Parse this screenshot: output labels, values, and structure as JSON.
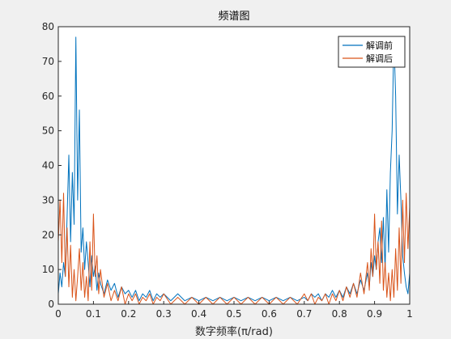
{
  "chart_data": {
    "type": "line",
    "title": "频谱图",
    "xlabel": "数字频率(π/rad)",
    "ylabel": "",
    "xlim": [
      0,
      1
    ],
    "ylim": [
      0,
      80
    ],
    "xticks": [
      "0",
      "0.1",
      "0.2",
      "0.3",
      "0.4",
      "0.5",
      "0.6",
      "0.7",
      "0.8",
      "0.9",
      "1"
    ],
    "yticks": [
      "0",
      "10",
      "20",
      "30",
      "40",
      "50",
      "60",
      "70",
      "80"
    ],
    "grid": false,
    "legend_position": "top-right",
    "series": [
      {
        "name": "解调前",
        "color": "#0072bd",
        "x": [
          0.0,
          0.005,
          0.01,
          0.015,
          0.02,
          0.025,
          0.03,
          0.035,
          0.04,
          0.045,
          0.05,
          0.055,
          0.06,
          0.065,
          0.07,
          0.075,
          0.08,
          0.085,
          0.09,
          0.095,
          0.1,
          0.105,
          0.11,
          0.115,
          0.12,
          0.13,
          0.14,
          0.15,
          0.16,
          0.17,
          0.18,
          0.19,
          0.2,
          0.21,
          0.22,
          0.23,
          0.24,
          0.25,
          0.26,
          0.27,
          0.28,
          0.29,
          0.3,
          0.32,
          0.34,
          0.36,
          0.38,
          0.4,
          0.42,
          0.44,
          0.46,
          0.48,
          0.5,
          0.52,
          0.54,
          0.56,
          0.58,
          0.6,
          0.62,
          0.64,
          0.66,
          0.68,
          0.7,
          0.71,
          0.72,
          0.73,
          0.74,
          0.75,
          0.76,
          0.77,
          0.78,
          0.79,
          0.8,
          0.81,
          0.82,
          0.83,
          0.84,
          0.85,
          0.86,
          0.87,
          0.88,
          0.885,
          0.89,
          0.895,
          0.9,
          0.905,
          0.91,
          0.915,
          0.92,
          0.925,
          0.93,
          0.935,
          0.94,
          0.945,
          0.95,
          0.955,
          0.96,
          0.965,
          0.97,
          0.975,
          0.98,
          0.985,
          0.99,
          0.995,
          1.0
        ],
        "values": [
          3,
          9,
          5,
          12,
          8,
          25,
          43,
          18,
          38,
          23,
          77,
          30,
          56,
          15,
          22,
          10,
          18,
          12,
          5,
          14,
          8,
          11,
          4,
          9,
          6,
          3,
          7,
          4,
          6,
          2,
          5,
          3,
          4,
          2,
          4,
          1,
          3,
          2,
          4,
          1,
          3,
          2,
          3,
          1,
          3,
          1,
          2,
          1,
          2,
          1,
          2,
          1,
          2,
          1,
          2,
          1,
          2,
          1,
          2,
          1,
          2,
          1,
          2,
          1,
          3,
          2,
          3,
          1,
          3,
          2,
          4,
          2,
          4,
          2,
          5,
          3,
          6,
          3,
          7,
          4,
          9,
          5,
          12,
          8,
          14,
          10,
          18,
          22,
          12,
          25,
          10,
          33,
          15,
          38,
          50,
          77,
          60,
          26,
          43,
          30,
          14,
          9,
          5,
          3,
          9
        ]
      },
      {
        "name": "解调后",
        "color": "#d95319",
        "x": [
          0.0,
          0.005,
          0.01,
          0.015,
          0.02,
          0.025,
          0.03,
          0.035,
          0.04,
          0.045,
          0.05,
          0.055,
          0.06,
          0.065,
          0.07,
          0.075,
          0.08,
          0.085,
          0.09,
          0.095,
          0.1,
          0.105,
          0.11,
          0.115,
          0.12,
          0.13,
          0.14,
          0.15,
          0.16,
          0.17,
          0.18,
          0.19,
          0.2,
          0.21,
          0.22,
          0.23,
          0.24,
          0.25,
          0.26,
          0.27,
          0.28,
          0.29,
          0.3,
          0.32,
          0.34,
          0.36,
          0.38,
          0.4,
          0.42,
          0.44,
          0.46,
          0.48,
          0.5,
          0.52,
          0.54,
          0.56,
          0.58,
          0.6,
          0.62,
          0.64,
          0.66,
          0.68,
          0.7,
          0.71,
          0.72,
          0.73,
          0.74,
          0.75,
          0.76,
          0.77,
          0.78,
          0.79,
          0.8,
          0.81,
          0.82,
          0.83,
          0.84,
          0.85,
          0.86,
          0.87,
          0.88,
          0.885,
          0.89,
          0.895,
          0.9,
          0.905,
          0.91,
          0.915,
          0.92,
          0.925,
          0.93,
          0.935,
          0.94,
          0.945,
          0.95,
          0.955,
          0.96,
          0.965,
          0.97,
          0.975,
          0.98,
          0.985,
          0.99,
          0.995,
          1.0
        ],
        "values": [
          18,
          30,
          12,
          32,
          8,
          22,
          5,
          17,
          2,
          10,
          1,
          8,
          16,
          4,
          12,
          2,
          8,
          1,
          18,
          4,
          26,
          8,
          14,
          3,
          10,
          2,
          6,
          1,
          4,
          1,
          5,
          0,
          3,
          1,
          3,
          0,
          2,
          1,
          3,
          0,
          2,
          1,
          3,
          0,
          2,
          0,
          2,
          0,
          2,
          0,
          2,
          0,
          2,
          0,
          2,
          0,
          2,
          0,
          2,
          0,
          2,
          0,
          3,
          1,
          3,
          0,
          2,
          1,
          3,
          0,
          3,
          1,
          4,
          1,
          5,
          2,
          6,
          2,
          9,
          3,
          12,
          4,
          16,
          8,
          26,
          10,
          18,
          6,
          24,
          4,
          12,
          2,
          9,
          1,
          10,
          2,
          16,
          4,
          22,
          6,
          30,
          12,
          32,
          16,
          28
        ]
      }
    ]
  }
}
